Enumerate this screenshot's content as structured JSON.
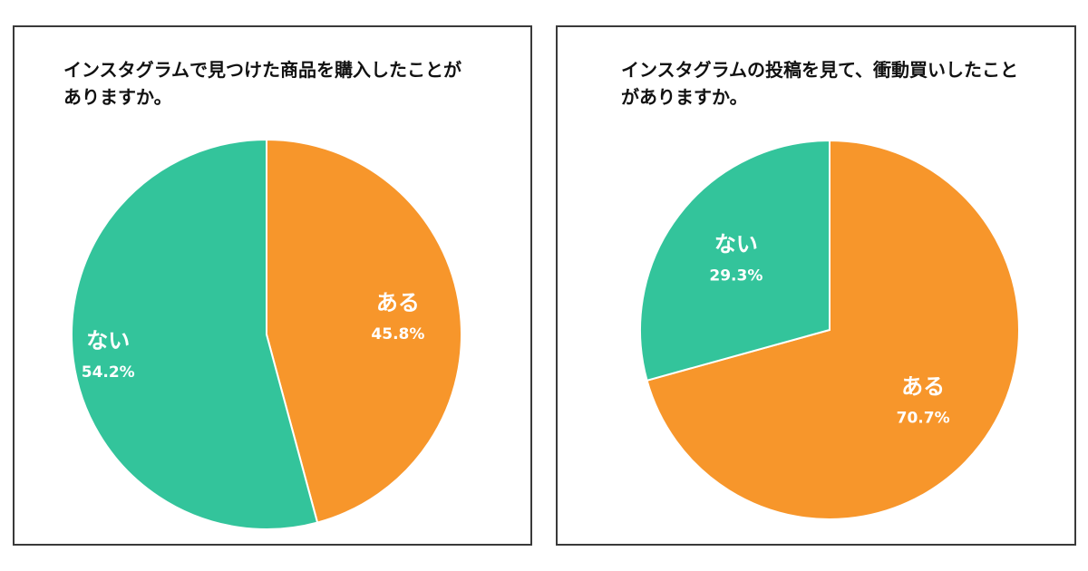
{
  "chart_data": [
    {
      "type": "pie",
      "title": "インスタグラムで見つけた商品を購入したことが\nありますか。",
      "slices": [
        {
          "label": "ある",
          "value": 45.8,
          "value_label": "45.8%",
          "color": "#f7962b"
        },
        {
          "label": "ない",
          "value": 54.2,
          "value_label": "54.2%",
          "color": "#33c49b"
        }
      ]
    },
    {
      "type": "pie",
      "title": "インスタグラムの投稿を見て、衝動買いしたこと\nがありますか。",
      "slices": [
        {
          "label": "ある",
          "value": 70.7,
          "value_label": "70.7%",
          "color": "#f7962b"
        },
        {
          "label": "ない",
          "value": 29.3,
          "value_label": "29.3%",
          "color": "#33c49b"
        }
      ]
    }
  ]
}
